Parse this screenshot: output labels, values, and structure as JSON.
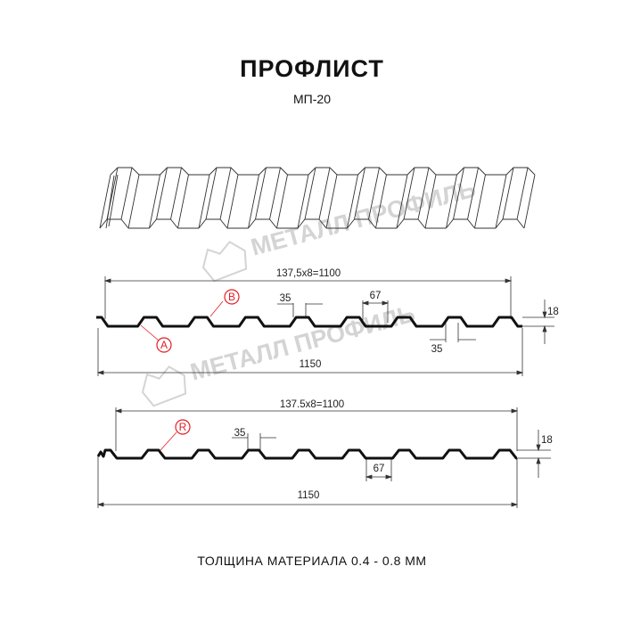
{
  "header": {
    "title": "ПРОФЛИСТ",
    "subtitle": "МП-20"
  },
  "watermark": {
    "text": "МЕТАЛЛ ПРОФИЛЬ",
    "color": "#d4d4d4"
  },
  "profile_a": {
    "pitch_label": "137,5x8=1100",
    "width_label": "1150",
    "top_width_label": "35",
    "bottom_width_label": "67",
    "bottom_flat_label": "35",
    "height_label": "18",
    "marker_a": "A",
    "marker_b": "B"
  },
  "profile_b": {
    "pitch_label": "137.5x8=1100",
    "width_label": "1150",
    "top_width_label": "35",
    "bottom_width_label": "67",
    "height_label": "18",
    "marker_r": "R"
  },
  "footer": {
    "thickness": "ТОЛЩИНА МАТЕРИАЛА 0.4 - 0.8 ММ"
  },
  "colors": {
    "profile": "#111111",
    "marker": "#e31e24",
    "dimension": "#333333"
  }
}
